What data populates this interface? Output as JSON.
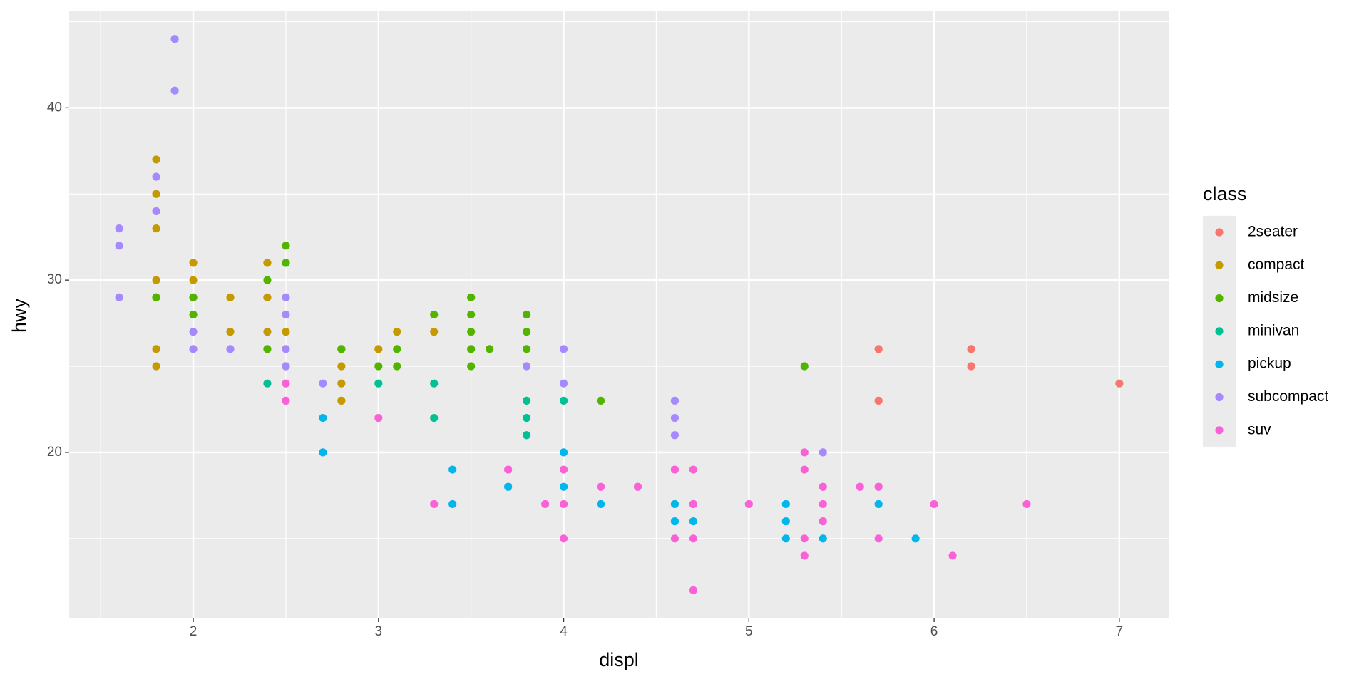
{
  "chart_data": {
    "type": "scatter",
    "x_label": "displ",
    "y_label": "hwy",
    "legend_title": "class",
    "legend_position": "right",
    "grid": true,
    "xlim": [
      1.33,
      7.27
    ],
    "ylim": [
      10.4,
      45.6
    ],
    "xticks": [
      2,
      3,
      4,
      5,
      6,
      7
    ],
    "yticks": [
      20,
      30,
      40
    ],
    "series": [
      {
        "name": "2seater",
        "color": "#F8766D",
        "x": [
          5.7,
          5.7,
          6.2,
          6.2,
          7
        ],
        "values": [
          26,
          23,
          26,
          25,
          24
        ]
      },
      {
        "name": "compact",
        "color": "#C49A00",
        "x": [
          1.8,
          1.8,
          1.8,
          1.8,
          1.8,
          1.8,
          1.8,
          2,
          2,
          2,
          2.2,
          2.2,
          2.4,
          2.4,
          2.4,
          2.5,
          2.5,
          2.8,
          2.8,
          2.8,
          2.8,
          3,
          3.1,
          3.3
        ],
        "values": [
          37,
          35,
          33,
          30,
          29,
          26,
          25,
          31,
          30,
          29,
          29,
          27,
          31,
          29,
          27,
          27,
          25,
          26,
          25,
          24,
          23,
          26,
          27,
          27
        ]
      },
      {
        "name": "midsize",
        "color": "#53B400",
        "x": [
          1.8,
          2,
          2,
          2.4,
          2.4,
          2.5,
          2.5,
          2.8,
          3,
          3.1,
          3.1,
          3.3,
          3.5,
          3.5,
          3.5,
          3.5,
          3.5,
          3.6,
          3.8,
          3.8,
          3.8,
          4.2,
          5.3
        ],
        "values": [
          29,
          29,
          28,
          30,
          26,
          32,
          31,
          26,
          25,
          26,
          25,
          28,
          29,
          28,
          27,
          26,
          25,
          26,
          28,
          27,
          26,
          23,
          25
        ]
      },
      {
        "name": "minivan",
        "color": "#00C094",
        "x": [
          2.4,
          3,
          3.3,
          3.3,
          3.8,
          3.8,
          3.8,
          4
        ],
        "values": [
          24,
          24,
          24,
          22,
          23,
          22,
          21,
          23
        ]
      },
      {
        "name": "pickup",
        "color": "#00B6EB",
        "x": [
          2.7,
          2.7,
          3.4,
          3.4,
          3.7,
          4,
          4,
          4.2,
          4.6,
          4.6,
          4.7,
          4.7,
          5.2,
          5.2,
          5.2,
          5.4,
          5.7,
          5.9
        ],
        "values": [
          22,
          20,
          19,
          17,
          18,
          20,
          18,
          17,
          17,
          16,
          17,
          16,
          17,
          16,
          15,
          15,
          17,
          15
        ]
      },
      {
        "name": "subcompact",
        "color": "#A58AFF",
        "x": [
          1.6,
          1.6,
          1.6,
          1.8,
          1.8,
          1.9,
          1.9,
          2,
          2,
          2.2,
          2.5,
          2.5,
          2.5,
          2.5,
          2.7,
          3.8,
          4,
          4,
          4.6,
          4.6,
          4.6,
          5.4
        ],
        "values": [
          33,
          32,
          29,
          36,
          34,
          44,
          41,
          27,
          26,
          26,
          29,
          28,
          26,
          25,
          24,
          25,
          26,
          24,
          23,
          22,
          21,
          20
        ]
      },
      {
        "name": "suv",
        "color": "#FB61D7",
        "x": [
          2.5,
          2.5,
          3,
          3.3,
          3.7,
          3.9,
          4,
          4,
          4,
          4.2,
          4.4,
          4.6,
          4.6,
          4.7,
          4.7,
          4.7,
          4.7,
          5,
          5.3,
          5.3,
          5.3,
          5.3,
          5.4,
          5.4,
          5.4,
          5.6,
          5.7,
          5.7,
          6,
          6.1,
          6.5
        ],
        "values": [
          24,
          23,
          22,
          17,
          19,
          17,
          19,
          17,
          15,
          18,
          18,
          19,
          15,
          19,
          17,
          15,
          12,
          17,
          20,
          19,
          15,
          14,
          18,
          17,
          16,
          18,
          18,
          15,
          17,
          14,
          17
        ]
      }
    ]
  }
}
